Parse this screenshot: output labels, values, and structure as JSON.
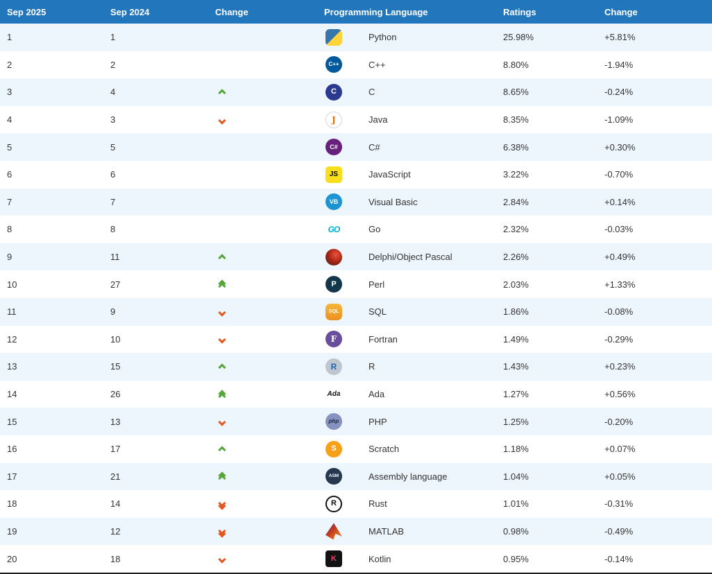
{
  "colors": {
    "header_bg": "#2276bc",
    "row_alt_bg": "#eef6fd",
    "up_arrow": "#57a639",
    "down_arrow": "#e25822"
  },
  "table": {
    "headers": [
      "Sep 2025",
      "Sep 2024",
      "Change",
      "Programming Language",
      "Ratings",
      "Change"
    ],
    "rows": [
      {
        "rank2025": "1",
        "rank2024": "1",
        "change": "",
        "language": "Python",
        "icon": "python-icon",
        "icon_class": "ic-python",
        "icon_text": "",
        "ratings": "25.98%",
        "ratings_change": "+5.81%"
      },
      {
        "rank2025": "2",
        "rank2024": "2",
        "change": "",
        "language": "C++",
        "icon": "cpp-icon",
        "icon_class": "ic-cpp",
        "icon_text": "C++",
        "ratings": "8.80%",
        "ratings_change": "-1.94%"
      },
      {
        "rank2025": "3",
        "rank2024": "4",
        "change": "up",
        "language": "C",
        "icon": "c-icon",
        "icon_class": "ic-c",
        "icon_text": "C",
        "ratings": "8.65%",
        "ratings_change": "-0.24%"
      },
      {
        "rank2025": "4",
        "rank2024": "3",
        "change": "down",
        "language": "Java",
        "icon": "java-icon",
        "icon_class": "ic-java",
        "icon_text": "J",
        "ratings": "8.35%",
        "ratings_change": "-1.09%"
      },
      {
        "rank2025": "5",
        "rank2024": "5",
        "change": "",
        "language": "C#",
        "icon": "csharp-icon",
        "icon_class": "ic-csharp",
        "icon_text": "C#",
        "ratings": "6.38%",
        "ratings_change": "+0.30%"
      },
      {
        "rank2025": "6",
        "rank2024": "6",
        "change": "",
        "language": "JavaScript",
        "icon": "javascript-icon",
        "icon_class": "ic-js",
        "icon_text": "JS",
        "ratings": "3.22%",
        "ratings_change": "-0.70%"
      },
      {
        "rank2025": "7",
        "rank2024": "7",
        "change": "",
        "language": "Visual Basic",
        "icon": "visual-basic-icon",
        "icon_class": "ic-vb",
        "icon_text": "VB",
        "ratings": "2.84%",
        "ratings_change": "+0.14%"
      },
      {
        "rank2025": "8",
        "rank2024": "8",
        "change": "",
        "language": "Go",
        "icon": "go-icon",
        "icon_class": "ic-go",
        "icon_text": "GO",
        "ratings": "2.32%",
        "ratings_change": "-0.03%"
      },
      {
        "rank2025": "9",
        "rank2024": "11",
        "change": "up",
        "language": "Delphi/Object Pascal",
        "icon": "delphi-icon",
        "icon_class": "ic-delphi",
        "icon_text": "",
        "ratings": "2.26%",
        "ratings_change": "+0.49%"
      },
      {
        "rank2025": "10",
        "rank2024": "27",
        "change": "up2",
        "language": "Perl",
        "icon": "perl-icon",
        "icon_class": "ic-perl",
        "icon_text": "P",
        "ratings": "2.03%",
        "ratings_change": "+1.33%"
      },
      {
        "rank2025": "11",
        "rank2024": "9",
        "change": "down",
        "language": "SQL",
        "icon": "sql-icon",
        "icon_class": "ic-sql",
        "icon_text": "SQL",
        "ratings": "1.86%",
        "ratings_change": "-0.08%"
      },
      {
        "rank2025": "12",
        "rank2024": "10",
        "change": "down",
        "language": "Fortran",
        "icon": "fortran-icon",
        "icon_class": "ic-fortran",
        "icon_text": "F",
        "ratings": "1.49%",
        "ratings_change": "-0.29%"
      },
      {
        "rank2025": "13",
        "rank2024": "15",
        "change": "up",
        "language": "R",
        "icon": "r-icon",
        "icon_class": "ic-r",
        "icon_text": "R",
        "ratings": "1.43%",
        "ratings_change": "+0.23%"
      },
      {
        "rank2025": "14",
        "rank2024": "26",
        "change": "up2",
        "language": "Ada",
        "icon": "ada-icon",
        "icon_class": "ic-ada",
        "icon_text": "Ada",
        "ratings": "1.27%",
        "ratings_change": "+0.56%"
      },
      {
        "rank2025": "15",
        "rank2024": "13",
        "change": "down",
        "language": "PHP",
        "icon": "php-icon",
        "icon_class": "ic-php",
        "icon_text": "php",
        "ratings": "1.25%",
        "ratings_change": "-0.20%"
      },
      {
        "rank2025": "16",
        "rank2024": "17",
        "change": "up",
        "language": "Scratch",
        "icon": "scratch-icon",
        "icon_class": "ic-scratch",
        "icon_text": "S",
        "ratings": "1.18%",
        "ratings_change": "+0.07%"
      },
      {
        "rank2025": "17",
        "rank2024": "21",
        "change": "up2",
        "language": "Assembly language",
        "icon": "assembly-icon",
        "icon_class": "ic-asm",
        "icon_text": "ASM",
        "ratings": "1.04%",
        "ratings_change": "+0.05%"
      },
      {
        "rank2025": "18",
        "rank2024": "14",
        "change": "down2",
        "language": "Rust",
        "icon": "rust-icon",
        "icon_class": "ic-rust",
        "icon_text": "R",
        "ratings": "1.01%",
        "ratings_change": "-0.31%"
      },
      {
        "rank2025": "19",
        "rank2024": "12",
        "change": "down2",
        "language": "MATLAB",
        "icon": "matlab-icon",
        "icon_class": "ic-matlab",
        "icon_text": "",
        "ratings": "0.98%",
        "ratings_change": "-0.49%"
      },
      {
        "rank2025": "20",
        "rank2024": "18",
        "change": "down",
        "language": "Kotlin",
        "icon": "kotlin-icon",
        "icon_class": "ic-kotlin",
        "icon_text": "K",
        "ratings": "0.95%",
        "ratings_change": "-0.14%"
      }
    ]
  }
}
